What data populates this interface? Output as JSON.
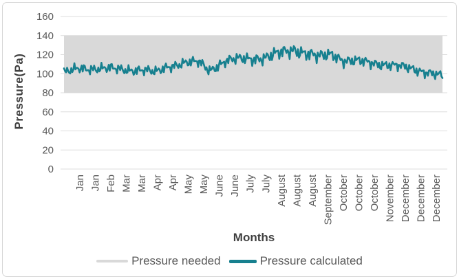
{
  "frame": {
    "background": "#ffffff",
    "border_color": "#d6d6d6"
  },
  "chart_data": {
    "type": "line",
    "title": "",
    "xlabel": "Months",
    "ylabel": "Pressure(Pa)",
    "ylim": [
      0,
      160
    ],
    "y_ticks": [
      0,
      20,
      40,
      60,
      80,
      100,
      120,
      140,
      160
    ],
    "x_tick_labels": [
      "Jan",
      "Jan",
      "Feb",
      "Mar",
      "Mar",
      "Apr",
      "Apr",
      "May",
      "May",
      "June",
      "June",
      "July",
      "July",
      "August",
      "August",
      "August",
      "September",
      "October",
      "October",
      "October",
      "November",
      "December",
      "December",
      "December"
    ],
    "grid": "horizontal",
    "gridline_color": "#dcdcdc",
    "axis_text_color": "#595959",
    "axis_title_color": "#404040",
    "legend": {
      "position": "bottom",
      "entries": [
        {
          "label": "Pressure needed",
          "color": "#d9d9d9"
        },
        {
          "label": "Pressure calculated",
          "color": "#17808f"
        }
      ]
    },
    "series": [
      {
        "name": "Pressure needed",
        "type": "band",
        "y_lower": 80,
        "y_upper": 140,
        "color": "#d9d9d9"
      },
      {
        "name": "Pressure calculated",
        "type": "line",
        "color": "#17808f",
        "stroke_width": 2.6,
        "points": 365,
        "x_domain_days": [
          0,
          364
        ],
        "trend": {
          "day": [
            0,
            15,
            45,
            75,
            88,
            100,
            115,
            130,
            140,
            155,
            175,
            195,
            210,
            222,
            232,
            245,
            258,
            270,
            290,
            310,
            330,
            350,
            364
          ],
          "value": [
            100,
            106,
            105,
            104,
            101,
            108,
            111,
            112,
            104,
            113,
            116,
            117,
            122,
            126,
            122,
            117,
            121,
            114,
            112,
            110,
            106,
            102,
            97
          ]
        },
        "noise_peak": 8,
        "august_boost": {
          "center_day": 222,
          "sigma": 38,
          "factor": 0.38
        },
        "observed_min": 93,
        "observed_max": 140
      }
    ]
  }
}
